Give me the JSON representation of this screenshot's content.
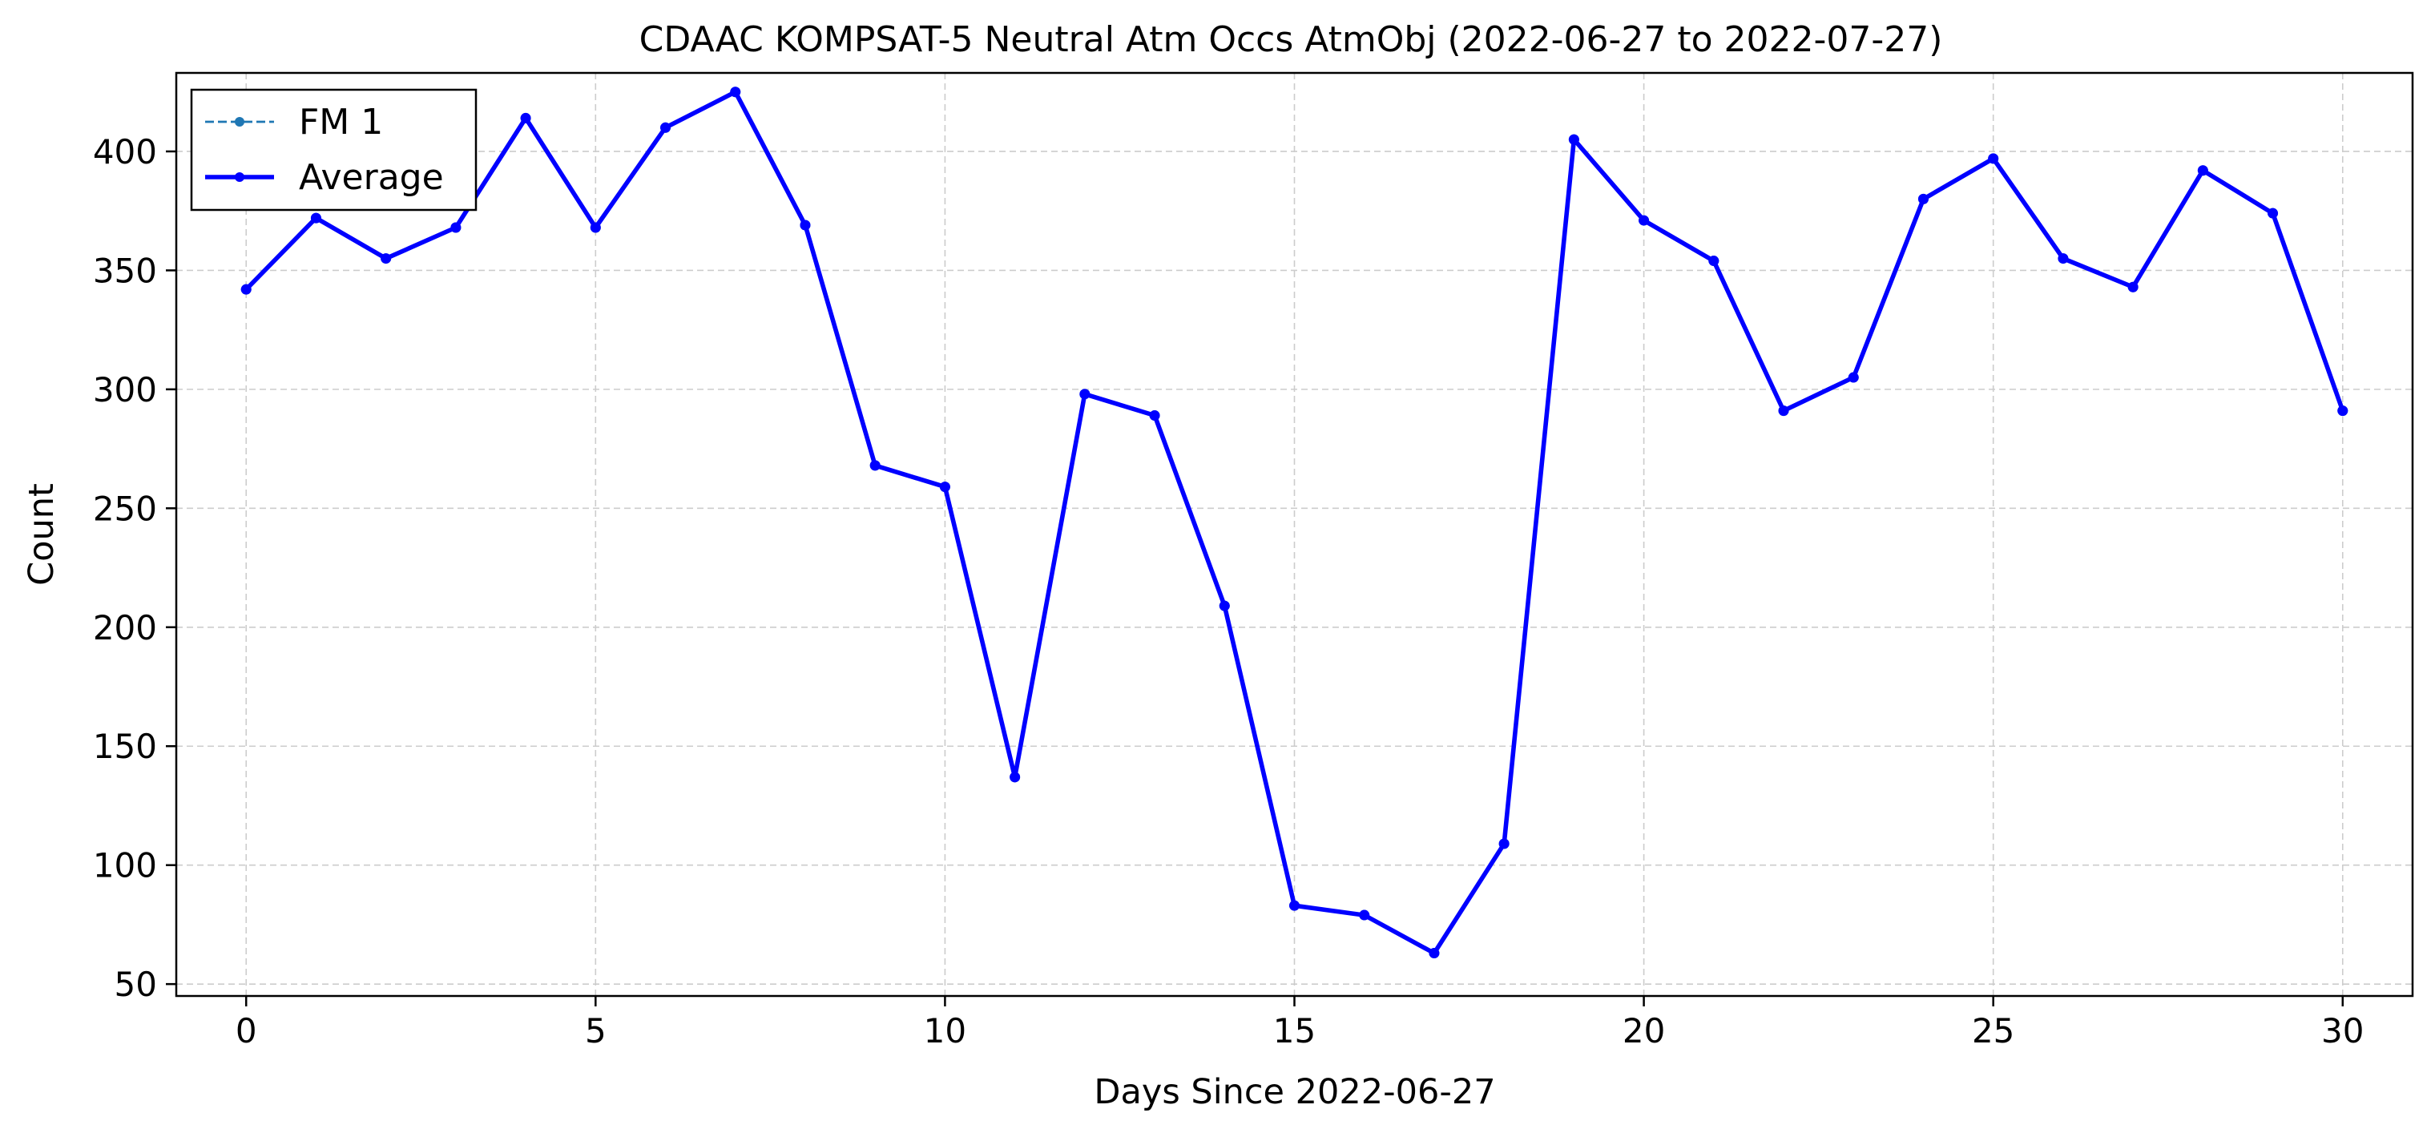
{
  "chart_data": {
    "type": "line",
    "title": "CDAAC KOMPSAT-5 Neutral Atm Occs AtmObj (2022-06-27 to 2022-07-27)",
    "xlabel": "Days Since 2022-06-27",
    "ylabel": "Count",
    "xlim": [
      -1,
      31
    ],
    "ylim": [
      45,
      433
    ],
    "xticks": [
      0,
      5,
      10,
      15,
      20,
      25,
      30
    ],
    "yticks": [
      50,
      100,
      150,
      200,
      250,
      300,
      350,
      400
    ],
    "grid": true,
    "legend_position": "top-left",
    "x": [
      0,
      1,
      2,
      3,
      4,
      5,
      6,
      7,
      8,
      9,
      10,
      11,
      12,
      13,
      14,
      15,
      16,
      17,
      18,
      19,
      20,
      21,
      22,
      23,
      24,
      25,
      26,
      27,
      28,
      29,
      30
    ],
    "series": [
      {
        "name": "FM 1",
        "style": "dashed",
        "color": "#1f77b4",
        "values": [
          342,
          372,
          355,
          368,
          414,
          368,
          410,
          425,
          369,
          268,
          259,
          137,
          298,
          289,
          209,
          83,
          79,
          63,
          109,
          405,
          371,
          354,
          291,
          305,
          380,
          397,
          355,
          343,
          392,
          374,
          291
        ]
      },
      {
        "name": "Average",
        "style": "solid",
        "color": "#0000ff",
        "values": [
          342,
          372,
          355,
          368,
          414,
          368,
          410,
          425,
          369,
          268,
          259,
          137,
          298,
          289,
          209,
          83,
          79,
          63,
          109,
          405,
          371,
          354,
          291,
          305,
          380,
          397,
          355,
          343,
          392,
          374,
          291
        ]
      }
    ]
  }
}
